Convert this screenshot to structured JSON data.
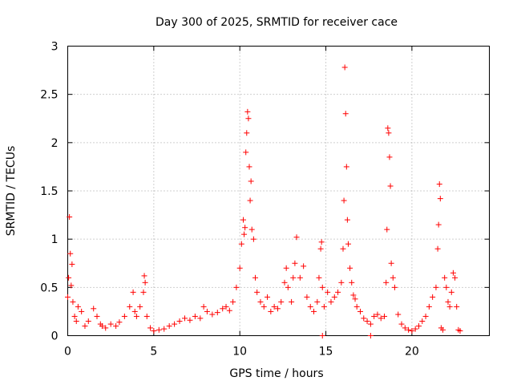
{
  "chart_data": {
    "type": "scatter",
    "title": "Day 300 of 2025, SRMTID for receiver cace",
    "xlabel": "GPS time / hours",
    "ylabel": "SRMTID / TECUs",
    "xlim": [
      0,
      24.5
    ],
    "ylim": [
      0,
      3
    ],
    "xticks": [
      0,
      5,
      10,
      15,
      20
    ],
    "xtick_labels": [
      "0",
      "5",
      "10",
      "15",
      "20"
    ],
    "yticks": [
      0,
      0.5,
      1,
      1.5,
      2,
      2.5,
      3
    ],
    "ytick_labels": [
      "0",
      "0.5",
      "1",
      "1.5",
      "2",
      "2.5",
      "3"
    ],
    "grid": true,
    "marker": "+",
    "color": "#ff0000",
    "series": [
      {
        "name": "SRMTID",
        "x": [
          0.0,
          0.05,
          0.1,
          0.15,
          0.2,
          0.25,
          0.3,
          0.4,
          0.5,
          0.6,
          0.8,
          1.0,
          1.2,
          1.5,
          1.7,
          1.9,
          2.0,
          2.2,
          2.5,
          2.8,
          3.0,
          3.3,
          3.6,
          3.8,
          3.9,
          4.0,
          4.2,
          4.4,
          4.45,
          4.5,
          4.6,
          4.8,
          5.0,
          5.3,
          5.6,
          5.9,
          6.2,
          6.5,
          6.8,
          7.1,
          7.4,
          7.7,
          7.9,
          8.1,
          8.4,
          8.7,
          9.0,
          9.2,
          9.4,
          9.6,
          9.8,
          10.0,
          10.1,
          10.2,
          10.25,
          10.3,
          10.35,
          10.4,
          10.45,
          10.5,
          10.55,
          10.6,
          10.65,
          10.7,
          10.8,
          10.9,
          11.0,
          11.2,
          11.4,
          11.6,
          11.8,
          12.0,
          12.2,
          12.4,
          12.6,
          12.7,
          12.8,
          13.0,
          13.1,
          13.2,
          13.3,
          13.5,
          13.7,
          13.9,
          14.1,
          14.3,
          14.5,
          14.6,
          14.7,
          14.75,
          14.8,
          14.9,
          15.1,
          15.3,
          15.5,
          15.7,
          15.9,
          16.0,
          16.05,
          16.1,
          16.15,
          16.2,
          16.25,
          16.3,
          16.4,
          16.5,
          16.6,
          16.7,
          16.8,
          17.0,
          17.2,
          17.4,
          17.6,
          17.8,
          18.0,
          18.2,
          18.4,
          18.5,
          18.55,
          18.6,
          18.65,
          18.7,
          18.75,
          18.8,
          18.9,
          19.0,
          19.2,
          19.4,
          19.6,
          19.8,
          20.0,
          20.2,
          20.4,
          20.6,
          20.8,
          21.0,
          21.2,
          21.4,
          21.5,
          21.55,
          21.6,
          21.65,
          21.7,
          21.8,
          21.9,
          22.0,
          22.1,
          22.2,
          22.3,
          22.4,
          22.5,
          22.6,
          22.7,
          22.8,
          14.8,
          17.6
        ],
        "y": [
          0.4,
          0.6,
          1.23,
          0.85,
          0.52,
          0.74,
          0.35,
          0.2,
          0.15,
          0.3,
          0.25,
          0.1,
          0.15,
          0.28,
          0.2,
          0.12,
          0.1,
          0.08,
          0.12,
          0.1,
          0.14,
          0.2,
          0.3,
          0.45,
          0.25,
          0.2,
          0.3,
          0.45,
          0.62,
          0.55,
          0.2,
          0.08,
          0.05,
          0.06,
          0.07,
          0.1,
          0.12,
          0.15,
          0.18,
          0.16,
          0.2,
          0.18,
          0.3,
          0.25,
          0.22,
          0.24,
          0.28,
          0.3,
          0.26,
          0.35,
          0.5,
          0.7,
          0.95,
          1.2,
          1.05,
          1.12,
          1.9,
          2.1,
          2.32,
          2.25,
          1.75,
          1.4,
          1.6,
          1.1,
          1.0,
          0.6,
          0.45,
          0.35,
          0.3,
          0.4,
          0.25,
          0.3,
          0.28,
          0.35,
          0.55,
          0.7,
          0.5,
          0.35,
          0.6,
          0.75,
          1.02,
          0.6,
          0.72,
          0.4,
          0.3,
          0.25,
          0.35,
          0.6,
          0.9,
          0.97,
          0.5,
          0.3,
          0.45,
          0.35,
          0.4,
          0.45,
          0.55,
          0.9,
          1.4,
          2.78,
          2.3,
          1.75,
          1.2,
          0.95,
          0.7,
          0.55,
          0.42,
          0.38,
          0.3,
          0.25,
          0.18,
          0.15,
          0.12,
          0.2,
          0.22,
          0.18,
          0.2,
          0.55,
          1.1,
          2.15,
          2.1,
          1.85,
          1.55,
          0.75,
          0.6,
          0.5,
          0.22,
          0.12,
          0.08,
          0.06,
          0.05,
          0.07,
          0.1,
          0.15,
          0.2,
          0.3,
          0.4,
          0.5,
          0.9,
          1.15,
          1.57,
          1.42,
          0.08,
          0.06,
          0.6,
          0.5,
          0.35,
          0.3,
          0.45,
          0.65,
          0.6,
          0.3,
          0.06,
          0.05,
          0.0,
          0.0
        ]
      }
    ]
  }
}
